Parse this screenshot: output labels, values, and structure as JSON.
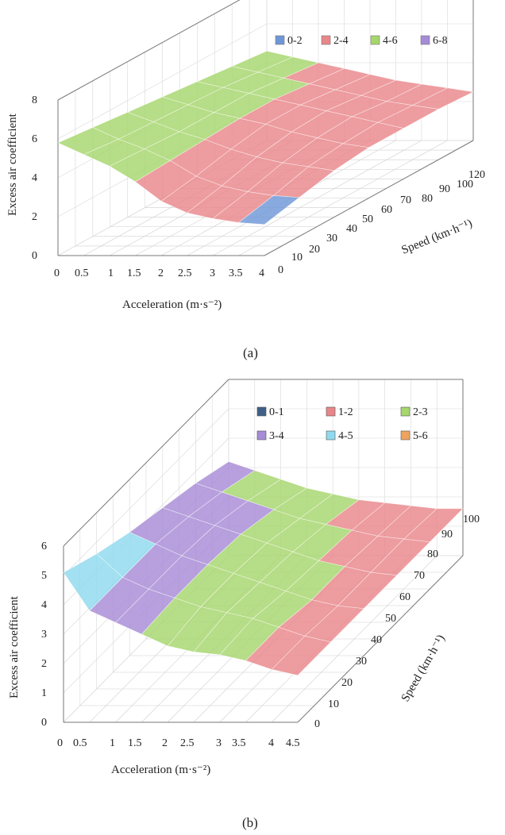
{
  "colors": {
    "0-2": "#6f97d8",
    "2-4": "#e9868a",
    "4-6": "#a6d66c",
    "6-8": "#a78bd6",
    "0-1": "#3f5f86",
    "1-2": "#e9868a",
    "2-3": "#a6d66c",
    "3-4": "#a78bd6",
    "4-5": "#8fd9ee",
    "5-6": "#f0a35c"
  },
  "chart_data": [
    {
      "panel": "(a)",
      "caption": "(a)",
      "type": "surface",
      "zlabel": "Excess air coefficient",
      "xlabel": "Acceleration (m·s⁻²)",
      "ylabel": "Speed (km·h⁻¹)",
      "zlim": [
        0,
        8
      ],
      "z_ticks": [
        "0",
        "2",
        "4",
        "6",
        "8"
      ],
      "x_ticks": [
        "0",
        "0.5",
        "1",
        "1.5",
        "2",
        "2.5",
        "3",
        "3.5",
        "4"
      ],
      "y_ticks": [
        "0",
        "10",
        "20",
        "30",
        "40",
        "50",
        "60",
        "70",
        "80",
        "90",
        "100",
        "120"
      ],
      "legend": [
        "0-2",
        "2-4",
        "4-6",
        "6-8"
      ],
      "legend_position": "top-right",
      "surface": {
        "acceleration": [
          0,
          0.5,
          1,
          1.5,
          2,
          2.5,
          3,
          3.5,
          4
        ],
        "speed": [
          0,
          20,
          40,
          60,
          80,
          100,
          120
        ],
        "z": [
          [
            5.8,
            5.2,
            4.6,
            3.8,
            2.8,
            2.2,
            1.9,
            1.7,
            1.6
          ],
          [
            5.6,
            5.0,
            4.5,
            3.9,
            3.1,
            2.6,
            2.3,
            2.1,
            2.0
          ],
          [
            5.4,
            4.9,
            4.4,
            4.0,
            3.5,
            3.1,
            2.8,
            2.6,
            2.4
          ],
          [
            5.2,
            4.8,
            4.4,
            4.1,
            3.8,
            3.4,
            3.1,
            2.8,
            2.6
          ],
          [
            5.0,
            4.7,
            4.4,
            4.1,
            3.8,
            3.5,
            3.2,
            2.9,
            2.6
          ],
          [
            4.8,
            4.5,
            4.2,
            3.9,
            3.6,
            3.3,
            3.0,
            2.8,
            2.6
          ],
          [
            4.6,
            4.3,
            4.0,
            3.7,
            3.4,
            3.1,
            2.9,
            2.7,
            2.5
          ]
        ]
      }
    },
    {
      "panel": "(b)",
      "caption": "(b)",
      "type": "surface",
      "zlabel": "Excess air coefficient",
      "xlabel": "Acceleration (m·s⁻²)",
      "ylabel": "Speed (km·h⁻¹)",
      "zlim": [
        0,
        6
      ],
      "z_ticks": [
        "0",
        "1",
        "2",
        "3",
        "4",
        "5",
        "6"
      ],
      "x_ticks": [
        "0",
        "0.5",
        "1",
        "1.5",
        "2",
        "2.5",
        "3",
        "3.5",
        "4",
        "4.5"
      ],
      "y_ticks": [
        "0",
        "10",
        "20",
        "30",
        "40",
        "50",
        "60",
        "70",
        "80",
        "90",
        "100"
      ],
      "legend": [
        "0-1",
        "1-2",
        "2-3",
        "3-4",
        "4-5",
        "5-6"
      ],
      "legend_position": "top-right",
      "surface": {
        "acceleration": [
          0,
          0.5,
          1,
          1.5,
          2,
          2.5,
          3,
          3.5,
          4,
          4.5
        ],
        "speed": [
          0,
          20,
          40,
          60,
          80,
          100
        ],
        "z": [
          [
            5.1,
            3.8,
            3.4,
            3.0,
            2.6,
            2.4,
            2.3,
            2.1,
            1.8,
            1.6
          ],
          [
            4.6,
            3.8,
            3.4,
            3.1,
            2.8,
            2.6,
            2.4,
            2.1,
            1.8,
            1.6
          ],
          [
            4.2,
            3.8,
            3.4,
            3.1,
            2.8,
            2.5,
            2.2,
            1.9,
            1.7,
            1.6
          ],
          [
            3.9,
            3.6,
            3.3,
            3.0,
            2.7,
            2.4,
            2.1,
            1.9,
            1.7,
            1.6
          ],
          [
            3.6,
            3.3,
            3.0,
            2.7,
            2.4,
            2.2,
            2.0,
            1.8,
            1.7,
            1.6
          ],
          [
            3.2,
            2.9,
            2.6,
            2.3,
            2.1,
            1.9,
            1.8,
            1.7,
            1.6,
            1.6
          ]
        ]
      }
    }
  ]
}
